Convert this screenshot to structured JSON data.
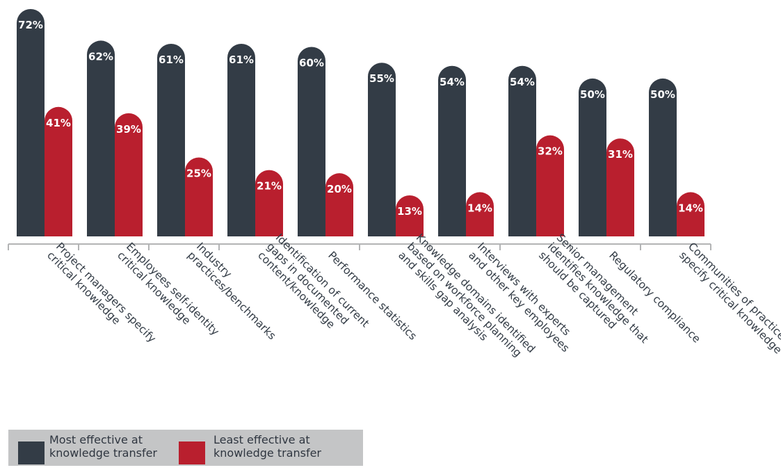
{
  "chart_data": {
    "type": "bar",
    "title": "",
    "xlabel": "",
    "ylabel": "",
    "ylim": [
      0,
      72
    ],
    "grid": false,
    "legend_position": "bottom-left",
    "categories": [
      [
        "Project managers specify",
        "critical knowledge"
      ],
      [
        "Employees self-identity",
        "critical knowledge"
      ],
      [
        "Industry",
        "practices/benchmarks"
      ],
      [
        "Identification of current",
        "gaps in documented",
        "content/knowledge"
      ],
      [
        "Performance statistics"
      ],
      [
        "Knowledge domains identified",
        "based on workforce planning",
        "and skills gap analysis"
      ],
      [
        "Interviews with experts",
        "and other key employees"
      ],
      [
        "Senior management",
        "identifies knowledge that",
        "should be captured"
      ],
      [
        "Regulatory compliance"
      ],
      [
        "Communities of practice",
        "specify critical knowledge"
      ]
    ],
    "series": [
      {
        "name": "Most effective at knowledge transfer",
        "color": "#333c46",
        "values": [
          72,
          62,
          61,
          61,
          60,
          55,
          54,
          54,
          50,
          50
        ],
        "labels": [
          "72%",
          "62%",
          "61%",
          "61%",
          "60%",
          "55%",
          "54%",
          "54%",
          "50%",
          "50%"
        ]
      },
      {
        "name": "Least effective at knowledge transfer",
        "color": "#b91f2e",
        "values": [
          41,
          39,
          25,
          21,
          20,
          13,
          14,
          32,
          31,
          14
        ],
        "labels": [
          "41%",
          "39%",
          "25%",
          "21%",
          "20%",
          "13%",
          "14%",
          "32%",
          "31%",
          "14%"
        ]
      }
    ]
  },
  "legend": {
    "items": [
      {
        "lines": [
          "Most effective at",
          "knowledge transfer"
        ],
        "color": "#333c46"
      },
      {
        "lines": [
          "Least effective at",
          "knowledge transfer"
        ],
        "color": "#b91f2e"
      }
    ]
  }
}
